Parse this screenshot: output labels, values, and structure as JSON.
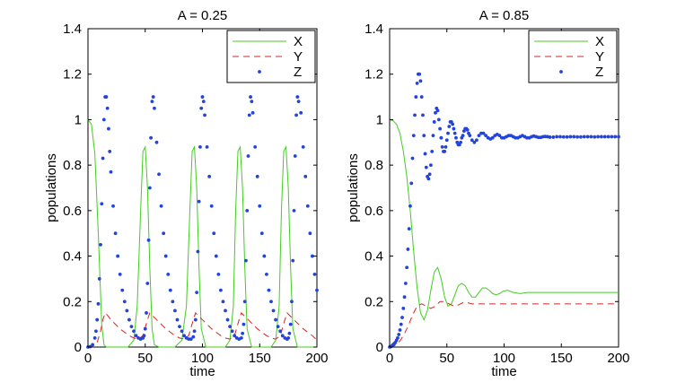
{
  "chart_data": [
    {
      "type": "line",
      "title": "A = 0.25",
      "xlabel": "time",
      "ylabel": "populations",
      "xlim": [
        0,
        200
      ],
      "ylim": [
        0,
        1.4
      ],
      "xticks": [
        0,
        50,
        100,
        150,
        200
      ],
      "yticks": [
        0,
        0.2,
        0.4,
        0.6,
        0.8,
        1,
        1.2,
        1.4
      ],
      "yticklabels": [
        "0",
        "0.2",
        "0.4",
        "0.6",
        "0.8",
        "1",
        "1.2",
        "1.4"
      ],
      "xticklabels": [
        "0",
        "50",
        "100",
        "150",
        "200"
      ],
      "grid": false,
      "legend_position": "top-right",
      "series": [
        {
          "name": "X",
          "style": "solid",
          "color": "#44cc22",
          "x": [
            0,
            3,
            6,
            9,
            12,
            14,
            16,
            20,
            25,
            30,
            35,
            40,
            43,
            46,
            48,
            50,
            52,
            54,
            56,
            58,
            62,
            66,
            70,
            76,
            82,
            86,
            89,
            91,
            93,
            95,
            97,
            99,
            103,
            108,
            114,
            120,
            124,
            127,
            129,
            131,
            133,
            135,
            137,
            139,
            143,
            148,
            154,
            160,
            164,
            167,
            169,
            171,
            173,
            175,
            177,
            179,
            183,
            188,
            194,
            200
          ],
          "y": [
            1.0,
            0.98,
            0.85,
            0.5,
            0.1,
            0.01,
            0.0,
            0.0,
            0.0,
            0.0,
            0.0,
            0.03,
            0.18,
            0.6,
            0.86,
            0.88,
            0.7,
            0.35,
            0.08,
            0.01,
            0.0,
            0.0,
            0.0,
            0.0,
            0.03,
            0.18,
            0.6,
            0.86,
            0.88,
            0.7,
            0.35,
            0.08,
            0.0,
            0.0,
            0.0,
            0.0,
            0.03,
            0.18,
            0.6,
            0.86,
            0.88,
            0.7,
            0.35,
            0.08,
            0.0,
            0.0,
            0.0,
            0.0,
            0.03,
            0.18,
            0.6,
            0.86,
            0.88,
            0.7,
            0.35,
            0.08,
            0.0,
            0.0,
            0.0,
            0.0
          ]
        },
        {
          "name": "Y",
          "style": "dashed",
          "color": "#dd2222",
          "x": [
            0,
            4,
            8,
            11,
            13,
            15,
            17,
            20,
            24,
            28,
            32,
            36,
            40,
            44,
            48,
            52,
            54,
            56,
            58,
            60,
            64,
            68,
            72,
            76,
            80,
            84,
            88,
            92,
            94,
            96,
            98,
            100,
            104,
            108,
            112,
            116,
            120,
            124,
            128,
            132,
            134,
            136,
            138,
            140,
            144,
            148,
            152,
            156,
            160,
            164,
            168,
            172,
            174,
            176,
            178,
            180,
            184,
            188,
            192,
            196,
            200
          ],
          "y": [
            0.0,
            0.003,
            0.02,
            0.07,
            0.12,
            0.15,
            0.14,
            0.12,
            0.1,
            0.08,
            0.065,
            0.05,
            0.04,
            0.035,
            0.05,
            0.12,
            0.15,
            0.14,
            0.13,
            0.12,
            0.1,
            0.08,
            0.065,
            0.05,
            0.04,
            0.035,
            0.05,
            0.12,
            0.15,
            0.14,
            0.13,
            0.12,
            0.1,
            0.08,
            0.065,
            0.05,
            0.04,
            0.035,
            0.05,
            0.12,
            0.15,
            0.14,
            0.13,
            0.12,
            0.1,
            0.08,
            0.065,
            0.05,
            0.04,
            0.035,
            0.05,
            0.12,
            0.15,
            0.14,
            0.13,
            0.12,
            0.1,
            0.08,
            0.065,
            0.05,
            0.03
          ]
        },
        {
          "name": "Z",
          "style": "dots",
          "color": "#2244dd",
          "x": [
            0,
            2,
            4,
            6,
            7,
            8,
            9,
            10,
            11,
            12,
            13,
            14,
            15,
            16,
            17,
            18,
            19,
            20,
            22,
            24,
            26,
            28,
            30,
            32,
            34,
            36,
            38,
            40,
            42,
            44,
            46,
            48,
            49,
            50,
            51,
            52,
            53,
            54,
            55,
            56,
            57,
            58,
            60,
            62,
            64,
            66,
            68,
            70,
            72,
            74,
            76,
            78,
            80,
            82,
            84,
            86,
            88,
            90,
            92,
            93,
            94,
            95,
            96,
            97,
            98,
            99,
            100,
            101,
            102,
            104,
            106,
            108,
            110,
            112,
            114,
            116,
            118,
            120,
            122,
            124,
            126,
            128,
            130,
            132,
            134,
            135,
            136,
            137,
            138,
            139,
            140,
            141,
            142,
            143,
            144,
            146,
            148,
            150,
            152,
            154,
            156,
            158,
            160,
            162,
            164,
            166,
            168,
            170,
            172,
            174,
            175,
            176,
            177,
            178,
            179,
            180,
            181,
            182,
            183,
            184,
            186,
            188,
            190,
            192,
            194,
            196,
            198,
            200
          ],
          "y": [
            0.0,
            0.002,
            0.01,
            0.04,
            0.07,
            0.12,
            0.19,
            0.3,
            0.45,
            0.63,
            0.83,
            1.0,
            1.1,
            1.1,
            1.05,
            0.96,
            0.86,
            0.77,
            0.62,
            0.5,
            0.4,
            0.32,
            0.25,
            0.2,
            0.16,
            0.12,
            0.09,
            0.07,
            0.05,
            0.04,
            0.035,
            0.04,
            0.05,
            0.08,
            0.15,
            0.28,
            0.47,
            0.7,
            0.92,
            1.08,
            1.1,
            1.05,
            0.9,
            0.76,
            0.62,
            0.5,
            0.4,
            0.32,
            0.25,
            0.2,
            0.16,
            0.12,
            0.09,
            0.07,
            0.05,
            0.04,
            0.035,
            0.035,
            0.045,
            0.07,
            0.12,
            0.24,
            0.42,
            0.64,
            0.88,
            1.05,
            1.1,
            1.08,
            1.02,
            0.88,
            0.75,
            0.62,
            0.5,
            0.4,
            0.32,
            0.25,
            0.2,
            0.16,
            0.12,
            0.09,
            0.07,
            0.05,
            0.04,
            0.035,
            0.04,
            0.06,
            0.1,
            0.2,
            0.38,
            0.6,
            0.84,
            1.02,
            1.1,
            1.08,
            1.03,
            0.88,
            0.75,
            0.62,
            0.5,
            0.4,
            0.32,
            0.25,
            0.2,
            0.16,
            0.12,
            0.09,
            0.07,
            0.05,
            0.04,
            0.035,
            0.04,
            0.06,
            0.1,
            0.2,
            0.38,
            0.6,
            0.84,
            1.02,
            1.1,
            1.08,
            1.03,
            0.88,
            0.75,
            0.62,
            0.5,
            0.4,
            0.32,
            0.25
          ]
        }
      ]
    },
    {
      "type": "line",
      "title": "A = 0.85",
      "xlabel": "time",
      "ylabel": "populations",
      "xlim": [
        0,
        200
      ],
      "ylim": [
        0,
        1.4
      ],
      "xticks": [
        0,
        50,
        100,
        150,
        200
      ],
      "yticks": [
        0,
        0.2,
        0.4,
        0.6,
        0.8,
        1,
        1.2,
        1.4
      ],
      "yticklabels": [
        "0",
        "0.2",
        "0.4",
        "0.6",
        "0.8",
        "1",
        "1.2",
        "1.4"
      ],
      "xticklabels": [
        "0",
        "50",
        "100",
        "150",
        "200"
      ],
      "grid": false,
      "legend_position": "top-right",
      "series": [
        {
          "name": "X",
          "style": "solid",
          "color": "#44cc22",
          "x": [
            0,
            3,
            6,
            9,
            12,
            15,
            18,
            21,
            24,
            27,
            30,
            33,
            36,
            39,
            42,
            45,
            48,
            51,
            54,
            57,
            60,
            63,
            66,
            69,
            72,
            75,
            78,
            81,
            84,
            87,
            90,
            93,
            96,
            99,
            103,
            108,
            114,
            120,
            130,
            140,
            150,
            160,
            170,
            180,
            190,
            200
          ],
          "y": [
            1.0,
            0.995,
            0.98,
            0.94,
            0.86,
            0.75,
            0.6,
            0.42,
            0.26,
            0.15,
            0.12,
            0.16,
            0.25,
            0.33,
            0.35,
            0.3,
            0.22,
            0.18,
            0.19,
            0.23,
            0.27,
            0.28,
            0.27,
            0.24,
            0.22,
            0.22,
            0.24,
            0.26,
            0.26,
            0.25,
            0.235,
            0.23,
            0.235,
            0.245,
            0.25,
            0.24,
            0.235,
            0.24,
            0.24,
            0.24,
            0.24,
            0.24,
            0.24,
            0.24,
            0.24,
            0.24
          ]
        },
        {
          "name": "Y",
          "style": "dashed",
          "color": "#dd2222",
          "x": [
            0,
            4,
            8,
            12,
            16,
            20,
            24,
            28,
            32,
            36,
            40,
            44,
            48,
            52,
            56,
            60,
            64,
            68,
            72,
            80,
            90,
            100,
            110,
            120,
            140,
            160,
            180,
            200
          ],
          "y": [
            0.0,
            0.005,
            0.02,
            0.05,
            0.09,
            0.14,
            0.18,
            0.19,
            0.18,
            0.17,
            0.18,
            0.2,
            0.2,
            0.19,
            0.18,
            0.185,
            0.195,
            0.195,
            0.19,
            0.19,
            0.19,
            0.19,
            0.19,
            0.19,
            0.19,
            0.19,
            0.19,
            0.19
          ]
        },
        {
          "name": "Z",
          "style": "dots",
          "color": "#2244dd",
          "x": [
            0,
            1,
            2,
            3,
            4,
            5,
            6,
            7,
            8,
            9,
            10,
            11,
            12,
            13,
            14,
            15,
            16,
            17,
            18,
            19,
            20,
            21,
            22,
            23,
            24,
            25,
            26,
            27,
            28,
            29,
            30,
            31,
            32,
            33,
            34,
            35,
            36,
            37,
            38,
            39,
            40,
            41,
            42,
            43,
            44,
            45,
            46,
            47,
            48,
            49,
            50,
            51,
            52,
            53,
            54,
            55,
            56,
            57,
            58,
            59,
            60,
            61,
            62,
            63,
            64,
            65,
            66,
            67,
            68,
            69,
            70,
            72,
            74,
            76,
            78,
            80,
            82,
            84,
            86,
            88,
            90,
            92,
            94,
            96,
            98,
            100,
            102,
            104,
            106,
            108,
            110,
            112,
            114,
            116,
            118,
            120,
            122,
            124,
            126,
            128,
            130,
            132,
            134,
            136,
            138,
            140,
            143,
            146,
            149,
            152,
            155,
            158,
            161,
            164,
            167,
            170,
            173,
            176,
            179,
            182,
            185,
            188,
            191,
            194,
            197,
            200
          ],
          "y": [
            0.0,
            0.002,
            0.005,
            0.01,
            0.015,
            0.02,
            0.03,
            0.04,
            0.055,
            0.075,
            0.1,
            0.13,
            0.17,
            0.22,
            0.28,
            0.35,
            0.43,
            0.52,
            0.62,
            0.72,
            0.83,
            0.93,
            1.02,
            1.1,
            1.16,
            1.2,
            1.2,
            1.17,
            1.1,
            1.02,
            0.93,
            0.85,
            0.79,
            0.75,
            0.74,
            0.76,
            0.8,
            0.86,
            0.93,
            0.99,
            1.03,
            1.05,
            1.04,
            1.0,
            0.96,
            0.92,
            0.88,
            0.86,
            0.86,
            0.88,
            0.91,
            0.94,
            0.97,
            0.99,
            0.99,
            0.98,
            0.96,
            0.94,
            0.92,
            0.9,
            0.89,
            0.89,
            0.9,
            0.92,
            0.93,
            0.95,
            0.96,
            0.96,
            0.955,
            0.94,
            0.93,
            0.91,
            0.9,
            0.91,
            0.93,
            0.94,
            0.94,
            0.93,
            0.92,
            0.915,
            0.92,
            0.93,
            0.935,
            0.93,
            0.92,
            0.92,
            0.925,
            0.93,
            0.93,
            0.925,
            0.92,
            0.92,
            0.925,
            0.93,
            0.925,
            0.92,
            0.92,
            0.925,
            0.928,
            0.925,
            0.922,
            0.922,
            0.925,
            0.926,
            0.925,
            0.923,
            0.923,
            0.925,
            0.925,
            0.924,
            0.924,
            0.925,
            0.925,
            0.924,
            0.924,
            0.925,
            0.925,
            0.925,
            0.924,
            0.925,
            0.925,
            0.925,
            0.925,
            0.925,
            0.925,
            0.925
          ]
        }
      ]
    }
  ]
}
